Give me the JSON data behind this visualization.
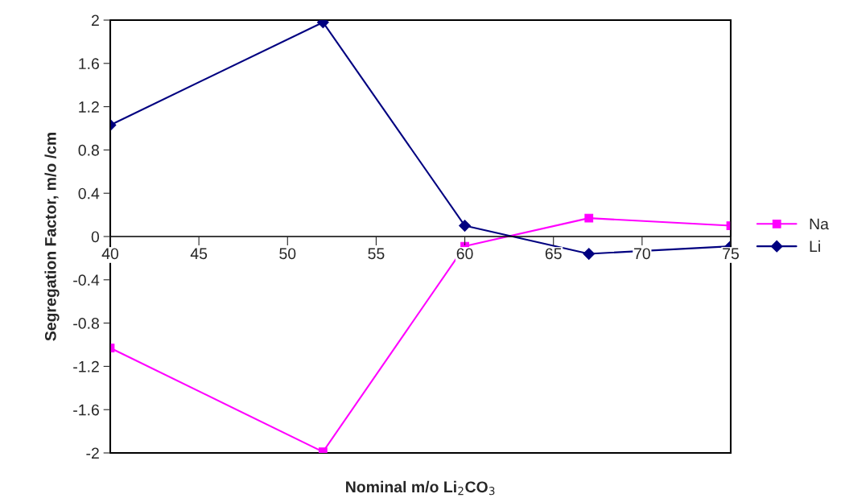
{
  "chart_data": {
    "type": "line",
    "xlabel": "Nominal m/o Li$_{2}$CO$_{3}$",
    "ylabel": "Segregation Factor, m/o /cm",
    "x": [
      40,
      52,
      60,
      67,
      75
    ],
    "series": [
      {
        "name": "Na",
        "color": "#ff00ff",
        "marker": "square",
        "values": [
          -1.03,
          -1.99,
          -0.09,
          0.17,
          0.1
        ]
      },
      {
        "name": "Li",
        "color": "#000080",
        "marker": "diamond",
        "values": [
          1.03,
          1.98,
          0.1,
          -0.16,
          -0.09
        ]
      }
    ],
    "xlim": [
      40,
      75
    ],
    "xticks": [
      40,
      45,
      50,
      55,
      60,
      65,
      70,
      75
    ],
    "ylim": [
      -2,
      2
    ],
    "yticks": [
      -2,
      -1.6,
      -1.2,
      -0.8,
      -0.4,
      0,
      0.4,
      0.8,
      1.2,
      1.6,
      2
    ],
    "grid": false,
    "legend": "right",
    "line_style": "solid"
  }
}
